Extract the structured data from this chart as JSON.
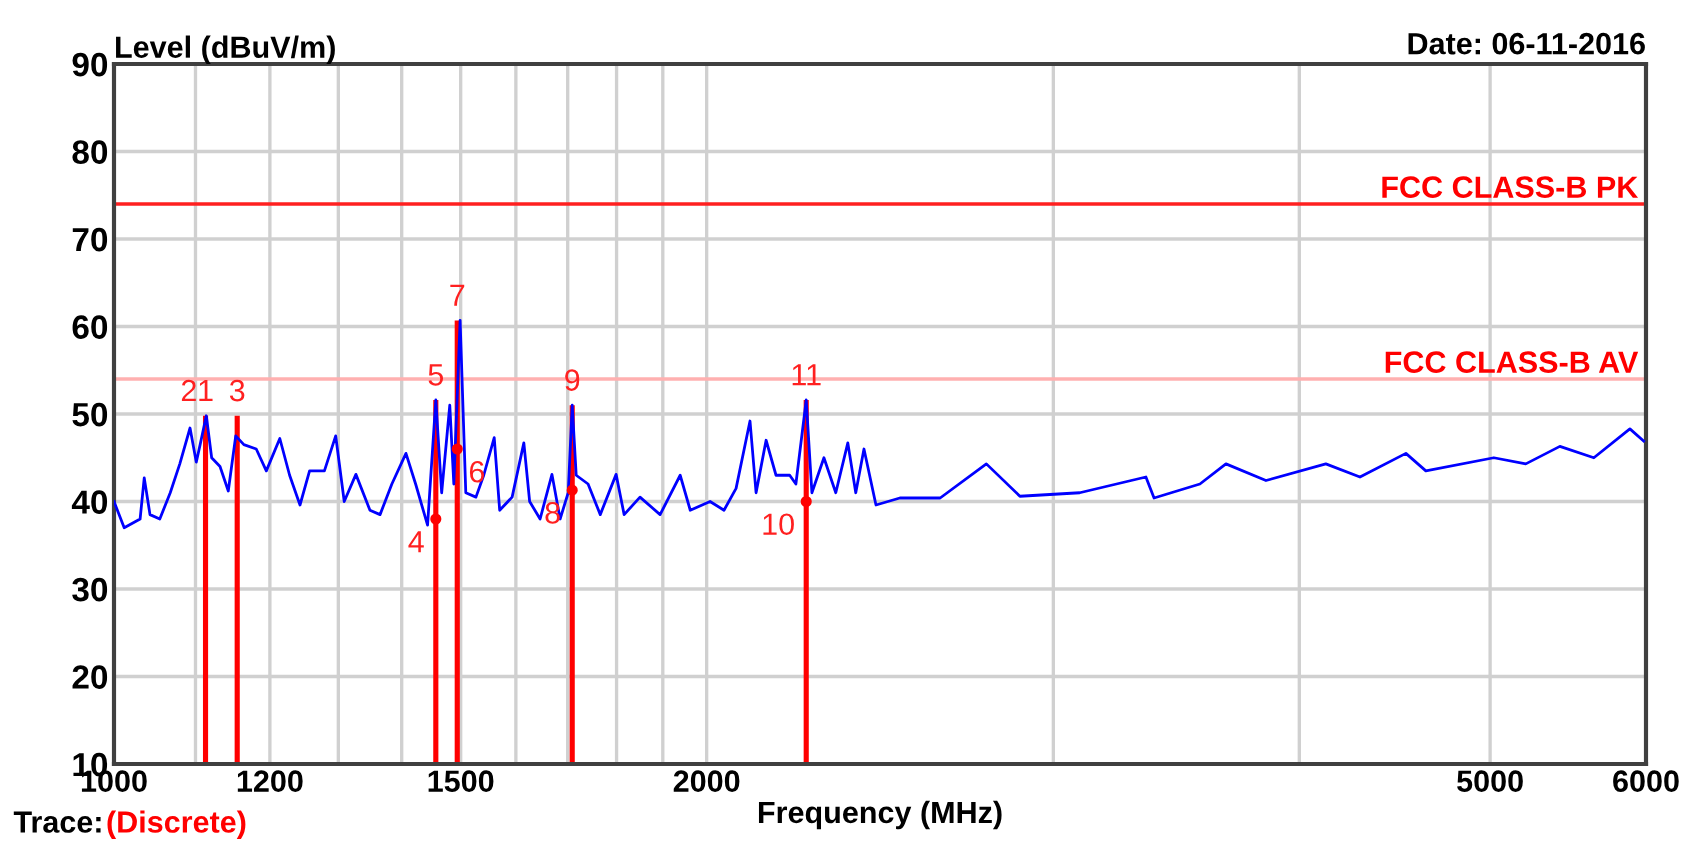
{
  "chart_data": {
    "type": "line",
    "xlabel": "Frequency (MHz)",
    "ylabel": "Level (dBuV/m)",
    "log": "x",
    "grid": true,
    "xlim": [
      1000,
      6000
    ],
    "ylim": [
      10,
      90
    ],
    "xticks": [
      1000,
      {
        "value": 1100,
        "label": null
      },
      1200,
      {
        "value": 1300,
        "label": null
      },
      {
        "value": 1400,
        "label": null
      },
      1500,
      {
        "value": 1600,
        "label": null
      },
      {
        "value": 1700,
        "label": null
      },
      {
        "value": 1800,
        "label": null
      },
      {
        "value": 1900,
        "label": null
      },
      2000,
      {
        "value": 3000,
        "label": null
      },
      {
        "value": 4000,
        "label": null
      },
      5000,
      6000
    ],
    "yticks": [
      10,
      20,
      30,
      40,
      50,
      60,
      70,
      80,
      90
    ],
    "series": [
      {
        "color": "#0000ff",
        "x": [
          1000,
          1012,
          1031,
          1036,
          1043,
          1055,
          1068,
          1080,
          1093,
          1101,
          1106,
          1114,
          1121,
          1132,
          1143,
          1153,
          1164,
          1181,
          1195,
          1214,
          1228,
          1243,
          1257,
          1279,
          1296,
          1309,
          1327,
          1349,
          1365,
          1384,
          1407,
          1423,
          1443,
          1457,
          1467,
          1481,
          1488,
          1499,
          1509,
          1527,
          1541,
          1560,
          1570,
          1593,
          1615,
          1626,
          1646,
          1669,
          1685,
          1701,
          1709,
          1717,
          1741,
          1766,
          1799,
          1816,
          1850,
          1894,
          1939,
          1962,
          2008,
          2041,
          2070,
          2104,
          2119,
          2144,
          2169,
          2204,
          2220,
          2247,
          2262,
          2294,
          2326,
          2359,
          2381,
          2404,
          2438,
          2507,
          2628,
          2774,
          2885,
          3094,
          3343,
          3375,
          3561,
          3671,
          3847,
          4126,
          4294,
          4531,
          4638,
          5022,
          5213,
          5425,
          5645,
          5888,
          5984
        ],
        "values": [
          40,
          37,
          38,
          42.7,
          38.5,
          38,
          41,
          44.3,
          48.4,
          44.5,
          46.5,
          49.8,
          45,
          44,
          41.2,
          47.5,
          46.5,
          46,
          43.5,
          47.2,
          43,
          39.6,
          43.5,
          43.5,
          47.5,
          40,
          43.1,
          39,
          38.5,
          42,
          45.5,
          42,
          37.3,
          51.6,
          41,
          51,
          42,
          60.7,
          41,
          40.5,
          43,
          47.3,
          39,
          40.5,
          46.7,
          40,
          38,
          43.1,
          38,
          41,
          51,
          43,
          42,
          38.5,
          43.1,
          38.5,
          40.5,
          38.5,
          43,
          39,
          40,
          39,
          41.5,
          49.2,
          41,
          47,
          43,
          43,
          42,
          51.6,
          41,
          45,
          41,
          46.7,
          41,
          46,
          39.6,
          40.4,
          40.4,
          44.3,
          40.6,
          41,
          42.8,
          40.4,
          42,
          44.3,
          42.4,
          44.3,
          42.8,
          45.5,
          43.5,
          45,
          44.3,
          46.3,
          45,
          48.3,
          46.9
        ]
      },
      {
        "type": "bar",
        "color": "#ff0000",
        "x": [
          1113,
          1155,
          1457,
          1494,
          1709,
          2247
        ],
        "values": [
          49.8,
          49.8,
          51.6,
          60.7,
          51,
          51.6
        ]
      },
      {
        "type": "scatter",
        "color": "#ff0000",
        "x": [
          1457,
          1494,
          1709,
          2247
        ],
        "values": [
          38,
          46,
          41.3,
          40
        ]
      }
    ],
    "ref_lines": [
      {
        "axis": "y",
        "value": 74,
        "label": "FCC CLASS-B PK",
        "color": "#ff2020"
      },
      {
        "axis": "y",
        "value": 54,
        "label": "FCC CLASS-B AV",
        "color": "#ffb0b0"
      }
    ],
    "annotations": [
      "Date: 06-11-2016",
      "Trace:",
      "(Discrete)",
      {
        "text": "1",
        "x": 1113,
        "y": 49.8
      },
      {
        "text": "2",
        "x": 1113,
        "y": 49.8
      },
      {
        "text": "3",
        "x": 1155,
        "y": 49.8
      },
      {
        "text": "4",
        "x": 1457,
        "y": 38
      },
      {
        "text": "5",
        "x": 1457,
        "y": 51.6
      },
      {
        "text": "6",
        "x": 1494,
        "y": 46
      },
      {
        "text": "7",
        "x": 1494,
        "y": 60.7
      },
      {
        "text": "8",
        "x": 1709,
        "y": 41.3
      },
      {
        "text": "9",
        "x": 1709,
        "y": 51
      },
      {
        "text": "10",
        "x": 2247,
        "y": 40
      },
      {
        "text": "11",
        "x": 2247,
        "y": 51.6
      }
    ]
  }
}
